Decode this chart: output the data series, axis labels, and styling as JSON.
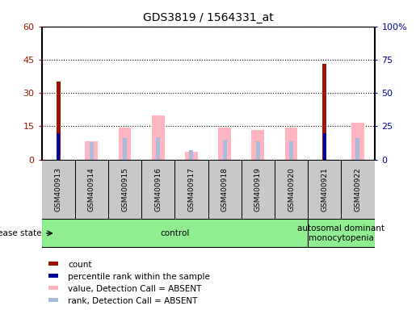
{
  "title": "GDS3819 / 1564331_at",
  "samples": [
    "GSM400913",
    "GSM400914",
    "GSM400915",
    "GSM400916",
    "GSM400917",
    "GSM400918",
    "GSM400919",
    "GSM400920",
    "GSM400921",
    "GSM400922"
  ],
  "count_values": [
    35,
    0,
    0,
    0,
    0,
    0,
    0,
    0,
    43,
    0
  ],
  "percentile_rank": [
    20,
    0,
    0,
    0,
    0,
    0,
    0,
    0,
    20,
    0
  ],
  "value_absent": [
    0,
    14,
    24,
    33,
    6,
    24,
    22,
    24,
    0,
    28
  ],
  "rank_absent": [
    0,
    13,
    16,
    17,
    7,
    15,
    14,
    14,
    0,
    16
  ],
  "ylim_left": [
    0,
    60
  ],
  "ylim_right": [
    0,
    100
  ],
  "yticks_left": [
    0,
    15,
    30,
    45,
    60
  ],
  "yticks_right": [
    0,
    25,
    50,
    75,
    100
  ],
  "ytick_labels_right": [
    "0",
    "25",
    "50",
    "75",
    "100%"
  ],
  "groups": [
    {
      "label": "control",
      "start": 0,
      "end": 7
    },
    {
      "label": "autosomal dominant\nmonocytopenia",
      "start": 8,
      "end": 9
    }
  ],
  "disease_state_label": "disease state",
  "color_count": "#9B1400",
  "color_percentile": "#00009B",
  "color_value_absent": "#FFB6C1",
  "color_rank_absent": "#AABCDC",
  "color_group_bg": "#90EE90",
  "color_sample_bg": "#C8C8C8",
  "legend_items": [
    {
      "label": "count",
      "color": "#9B1400"
    },
    {
      "label": "percentile rank within the sample",
      "color": "#00009B"
    },
    {
      "label": "value, Detection Call = ABSENT",
      "color": "#FFB6C1"
    },
    {
      "label": "rank, Detection Call = ABSENT",
      "color": "#AABCDC"
    }
  ]
}
